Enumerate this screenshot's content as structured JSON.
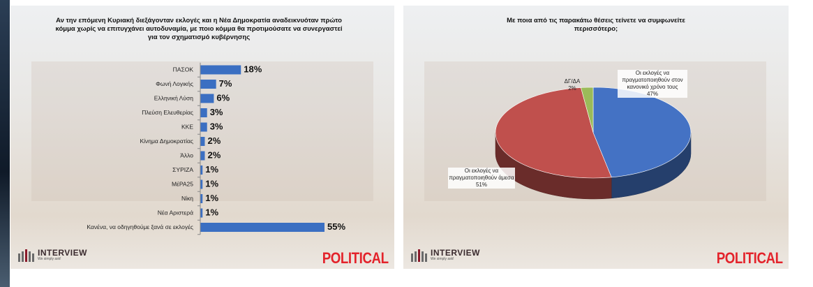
{
  "chart_data": [
    {
      "type": "bar",
      "title": "Αν την επόμενη Κυριακή διεξάγονταν εκλογές και η Νέα Δημοκρατία αναδεικνυόταν πρώτο κόμμα χωρίς να επιτυγχάνει αυτοδυναμία, με ποιο κόμμα θα προτιμούσατε να συνεργαστεί για τον σχηματισμό κυβέρνησης",
      "categories": [
        "ΠΑΣΟΚ",
        "Φωνή Λογικής",
        "Ελληνική Λύση",
        "Πλεύση Ελευθερίας",
        "ΚΚΕ",
        "Κίνημα Δημοκρατίας",
        "Άλλο",
        "ΣΥΡΙΖΑ",
        "ΜέΡΑ25",
        "Νίκη",
        "Νέα Αριστερά",
        "Κανένα, να οδηγηθούμε ξανά σε εκλογές"
      ],
      "values": [
        18,
        7,
        6,
        3,
        3,
        2,
        2,
        1,
        1,
        1,
        1,
        55
      ],
      "value_labels": [
        "18%",
        "7%",
        "6%",
        "3%",
        "3%",
        "2%",
        "2%",
        "1%",
        "1%",
        "1%",
        "1%",
        "55%"
      ],
      "color": "#3b6fc2"
    },
    {
      "type": "pie",
      "title": "Με ποια από τις παρακάτω θέσεις τείνετε να συμφωνείτε περισσότερο;",
      "labels": [
        "Οι εκλογές να πραγματοποιηθούν στον κανονικό χρόνο τους",
        "Οι εκλογές να πραγματοποιηθούν άμεσα",
        "ΔΓ/ΔΑ"
      ],
      "values": [
        47,
        51,
        2
      ],
      "value_labels": [
        "47%",
        "51%",
        "2%"
      ],
      "colors": [
        "#4472c4",
        "#c0504d",
        "#9bbb59"
      ]
    }
  ],
  "branding": {
    "company": "INTERVIEW",
    "tagline": "We simply ask!",
    "client": "POLITICAL"
  }
}
